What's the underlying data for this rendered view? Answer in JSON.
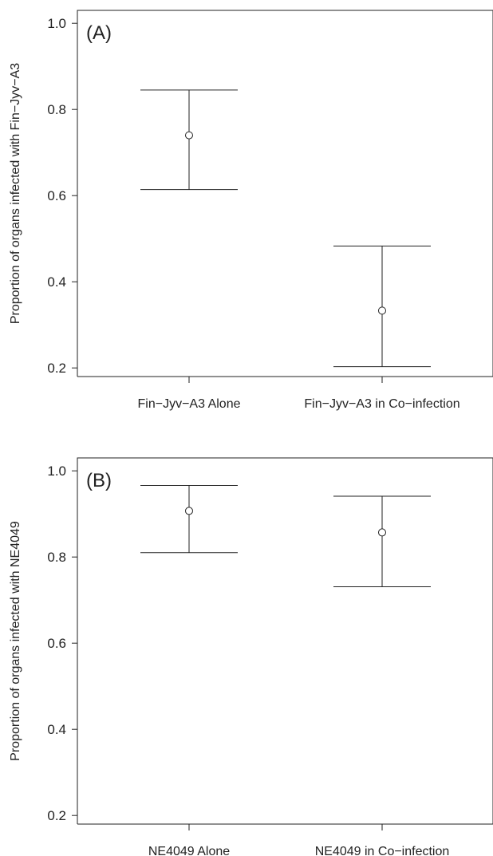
{
  "chart_data": [
    {
      "type": "scatter",
      "panel_label": "(A)",
      "ylabel": "Proportion of organs infected with Fin−Jyv−A3",
      "xlabel": "",
      "categories": [
        "Fin−Jyv−A3 Alone",
        "Fin−Jyv−A3 in Co−infection"
      ],
      "values": [
        0.74,
        0.333
      ],
      "lower": [
        0.614,
        0.203
      ],
      "upper": [
        0.845,
        0.483
      ],
      "ylim": [
        0.18,
        1.03
      ],
      "yticks": [
        0.2,
        0.4,
        0.6,
        0.8,
        1.0
      ],
      "ytick_labels": [
        "0.2",
        "0.4",
        "0.6",
        "0.8",
        "1.0"
      ],
      "grid": false,
      "error_bars": true
    },
    {
      "type": "scatter",
      "panel_label": "(B)",
      "ylabel": "Proportion of organs infected with NE4049",
      "xlabel": "",
      "categories": [
        "NE4049 Alone",
        "NE4049 in Co−infection"
      ],
      "values": [
        0.907,
        0.857
      ],
      "lower": [
        0.81,
        0.731
      ],
      "upper": [
        0.966,
        0.941
      ],
      "ylim": [
        0.18,
        1.03
      ],
      "yticks": [
        0.2,
        0.4,
        0.6,
        0.8,
        1.0
      ],
      "ytick_labels": [
        "0.2",
        "0.4",
        "0.6",
        "0.8",
        "1.0"
      ],
      "grid": false,
      "error_bars": true
    }
  ]
}
